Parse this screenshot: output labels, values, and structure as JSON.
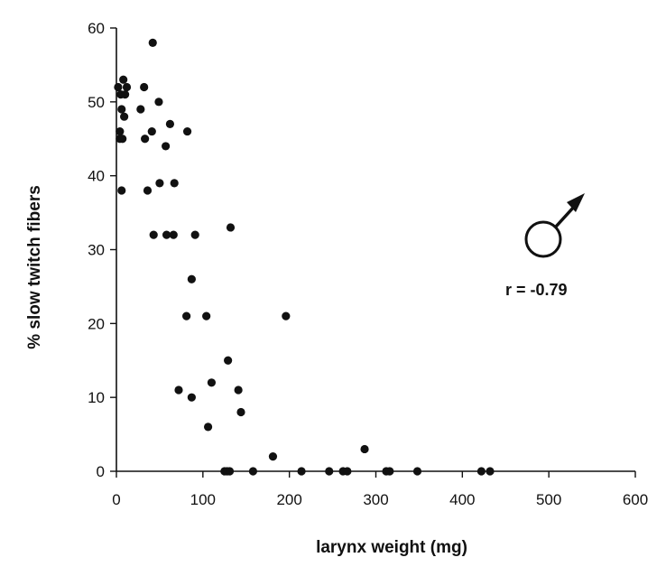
{
  "chart_data": {
    "type": "scatter",
    "title": "",
    "xlabel": "larynx weight (mg)",
    "ylabel": "% slow twitch fibers",
    "xlim": [
      0,
      600
    ],
    "ylim": [
      0,
      60
    ],
    "xticks": [
      0,
      100,
      200,
      300,
      400,
      500,
      600
    ],
    "yticks": [
      0,
      10,
      20,
      30,
      40,
      50,
      60
    ],
    "xtick_labels": [
      "0",
      "100",
      "200",
      "300",
      "400",
      "500",
      "600"
    ],
    "ytick_labels": [
      "0",
      "10",
      "20",
      "30",
      "40",
      "50",
      "60"
    ],
    "grid": false,
    "legend": "none",
    "marker_color": "#111111",
    "annotation": "r = -0.79",
    "symbol": "male-symbol",
    "points": [
      [
        2,
        52
      ],
      [
        4,
        46
      ],
      [
        4,
        45
      ],
      [
        5,
        51
      ],
      [
        6,
        38
      ],
      [
        6,
        49
      ],
      [
        7,
        45
      ],
      [
        8,
        53
      ],
      [
        9,
        48
      ],
      [
        10,
        51
      ],
      [
        12,
        52
      ],
      [
        28,
        49
      ],
      [
        32,
        52
      ],
      [
        33,
        45
      ],
      [
        36,
        38
      ],
      [
        42,
        58
      ],
      [
        41,
        46
      ],
      [
        43,
        32
      ],
      [
        49,
        50
      ],
      [
        50,
        39
      ],
      [
        57,
        44
      ],
      [
        58,
        32
      ],
      [
        62,
        47
      ],
      [
        66,
        32
      ],
      [
        67,
        39
      ],
      [
        81,
        21
      ],
      [
        82,
        46
      ],
      [
        87,
        26
      ],
      [
        72,
        11
      ],
      [
        87,
        10
      ],
      [
        91,
        32
      ],
      [
        104,
        21
      ],
      [
        106,
        6
      ],
      [
        110,
        12
      ],
      [
        125,
        0
      ],
      [
        128,
        0
      ],
      [
        129,
        15
      ],
      [
        131,
        0
      ],
      [
        132,
        33
      ],
      [
        141,
        11
      ],
      [
        144,
        8
      ],
      [
        158,
        0
      ],
      [
        181,
        2
      ],
      [
        196,
        21
      ],
      [
        214,
        0
      ],
      [
        246,
        0
      ],
      [
        262,
        0
      ],
      [
        267,
        0
      ],
      [
        287,
        3
      ],
      [
        312,
        0
      ],
      [
        316,
        0
      ],
      [
        348,
        0
      ],
      [
        422,
        0
      ],
      [
        432,
        0
      ]
    ]
  }
}
